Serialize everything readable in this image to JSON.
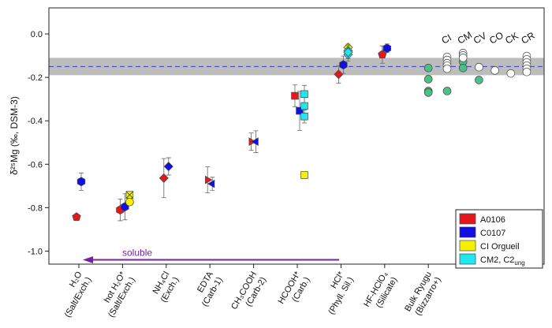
{
  "chart_data": {
    "type": "scatter",
    "ylabel": "δ²⁵Mg (‰, DSM-3)",
    "ylim": [
      -1.06,
      0.12
    ],
    "yticks": [
      {
        "value": -1.0,
        "label": "-1.0"
      },
      -0.8,
      -0.6,
      -0.4,
      -0.2,
      {
        "value": 0.0,
        "label": "0.0"
      }
    ],
    "categories": [
      {
        "name": "H₂O",
        "sub": "(Salt/Exch.)"
      },
      {
        "name": "hot H₂O*",
        "sub": "(Salt/Exch.)"
      },
      {
        "name": "NH₄Cl",
        "sub": "(Exch.)"
      },
      {
        "name": "EDTA",
        "sub": "(Carb-1)"
      },
      {
        "name": "CH₃COOH",
        "sub": "(Carb-2)"
      },
      {
        "name": "HCOOH*",
        "sub": "(Carb.)"
      },
      {
        "name": "HCl*",
        "sub": "(Phyll. Sil.)"
      },
      {
        "name": "HF-HClO₄",
        "sub": "(Silicate)"
      },
      {
        "name": "Bulk Ryugu",
        "sub": "(Bizzarro+)"
      }
    ],
    "group_labels": [
      "CI",
      "CM",
      "CV",
      "CO",
      "CK",
      "CR"
    ],
    "reference": {
      "value": -0.15,
      "band": [
        -0.11,
        -0.19
      ],
      "line_color": "#3a3ad8",
      "band_color": "#bdbdbd"
    },
    "annotation": {
      "text": "soluble",
      "y": -1.04,
      "color": "#7a1fa0"
    },
    "series": [
      {
        "name": "A0106",
        "color": "#e31a1c",
        "points": [
          {
            "category": 0,
            "value": -0.843,
            "marker": "pentagon"
          },
          {
            "category": 1,
            "value": -0.81,
            "error": 0.05,
            "marker": "hexagon"
          },
          {
            "category": 2,
            "value": -0.664,
            "error": 0.09,
            "marker": "diamond"
          },
          {
            "category": 3,
            "value": -0.672,
            "error": 0.06,
            "marker": "triangle-right"
          },
          {
            "category": 4,
            "value": -0.496,
            "error": 0.04,
            "marker": "triangle-right"
          },
          {
            "category": 5,
            "value": -0.285,
            "error": 0.05,
            "marker": "square"
          },
          {
            "category": 6,
            "value": -0.186,
            "error": 0.04,
            "marker": "diamond"
          },
          {
            "category": 7,
            "value": -0.095,
            "error": 0.04,
            "marker": "pentagon"
          }
        ]
      },
      {
        "name": "C0107",
        "color": "#1010e0",
        "points": [
          {
            "category": 0,
            "value": -0.68,
            "error": 0.04,
            "marker": "hexagon"
          },
          {
            "category": 1,
            "value": -0.796,
            "error": 0.06,
            "marker": "hexagon"
          },
          {
            "category": 2,
            "value": -0.61,
            "error": 0.04,
            "marker": "diamond"
          },
          {
            "category": 3,
            "value": -0.69,
            "error": 0.03,
            "marker": "triangle-left"
          },
          {
            "category": 4,
            "value": -0.496,
            "error": 0.05,
            "marker": "triangle-left"
          },
          {
            "category": 5,
            "value": -0.354,
            "error": 0.09,
            "marker": "square"
          },
          {
            "category": 6,
            "value": -0.142,
            "error": 0.04,
            "marker": "hexagon"
          },
          {
            "category": 7,
            "value": -0.066,
            "error": 0.02,
            "marker": "hexagon"
          }
        ]
      },
      {
        "name": "CI Orgueil",
        "color": "#f5f000",
        "points": [
          {
            "category": 1,
            "value": -0.774,
            "marker": "circle"
          },
          {
            "category": 1,
            "value": -0.741,
            "marker": "crossed-square"
          },
          {
            "category": 5,
            "value": -0.65,
            "marker": "square"
          },
          {
            "category": 6,
            "value": -0.062,
            "marker": "diamond"
          }
        ]
      },
      {
        "name": "CM2, C2",
        "name_subscript": "ung",
        "color": "#1ee8ee",
        "points": [
          {
            "category": 5,
            "value": -0.277,
            "error": 0.04,
            "marker": "square"
          },
          {
            "category": 5,
            "value": -0.332,
            "error": 0.04,
            "marker": "square"
          },
          {
            "category": 5,
            "value": -0.38,
            "error": 0.03,
            "marker": "square"
          },
          {
            "category": 6,
            "value": -0.077,
            "error": 0.03,
            "marker": "diamond"
          },
          {
            "category": 6,
            "value": -0.095,
            "error": 0.03,
            "marker": "diamond"
          },
          {
            "category": 6,
            "value": -0.084,
            "error": 0.03,
            "marker": "diamond"
          }
        ]
      },
      {
        "color": "#4cbf88",
        "points": [
          {
            "category": 8,
            "value": -0.157,
            "marker": "circle"
          },
          {
            "category": 8,
            "value": -0.208,
            "marker": "circle"
          },
          {
            "category": 8,
            "value": -0.263,
            "marker": "circle"
          },
          {
            "category": 8,
            "value": -0.27,
            "marker": "circle"
          },
          {
            "group": 0,
            "value": -0.263,
            "marker": "circle"
          },
          {
            "group": 1,
            "value": -0.128,
            "marker": "circle"
          },
          {
            "group": 1,
            "value": -0.157,
            "marker": "circle"
          },
          {
            "group": 2,
            "value": -0.212,
            "marker": "circle"
          }
        ]
      },
      {
        "color": "#ffffff",
        "points": [
          {
            "group": 0,
            "value": -0.106,
            "marker": "circle"
          },
          {
            "group": 0,
            "value": -0.12,
            "marker": "circle"
          },
          {
            "group": 0,
            "value": -0.135,
            "marker": "circle"
          },
          {
            "group": 0,
            "value": -0.146,
            "marker": "circle"
          },
          {
            "group": 0,
            "value": -0.16,
            "marker": "circle"
          },
          {
            "group": 1,
            "value": -0.088,
            "marker": "circle"
          },
          {
            "group": 1,
            "value": -0.099,
            "marker": "circle"
          },
          {
            "group": 1,
            "value": -0.11,
            "marker": "circle"
          },
          {
            "group": 2,
            "value": -0.153,
            "marker": "circle"
          },
          {
            "group": 3,
            "value": -0.168,
            "marker": "circle"
          },
          {
            "group": 4,
            "value": -0.182,
            "marker": "circle"
          },
          {
            "group": 5,
            "value": -0.102,
            "marker": "circle"
          },
          {
            "group": 5,
            "value": -0.117,
            "marker": "circle"
          },
          {
            "group": 5,
            "value": -0.131,
            "marker": "circle"
          },
          {
            "group": 5,
            "value": -0.146,
            "marker": "circle"
          },
          {
            "group": 5,
            "value": -0.16,
            "marker": "circle"
          },
          {
            "group": 5,
            "value": -0.175,
            "marker": "circle"
          }
        ]
      }
    ]
  }
}
